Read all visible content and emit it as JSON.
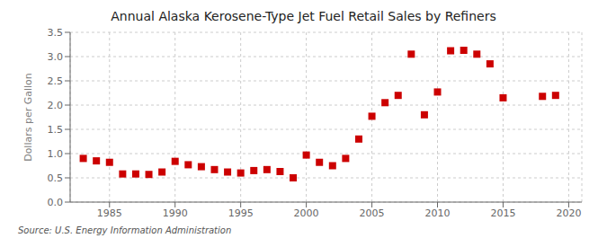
{
  "chart_data": {
    "type": "scatter",
    "title": "Annual Alaska Kerosene-Type Jet Fuel Retail Sales by Refiners",
    "y_label": "Dollars per Gallon",
    "annotations": [
      "Source: U.S. Energy Information Administration"
    ],
    "x": [
      1983,
      1984,
      1985,
      1986,
      1987,
      1988,
      1989,
      1990,
      1991,
      1992,
      1993,
      1994,
      1995,
      1996,
      1997,
      1998,
      1999,
      2000,
      2001,
      2002,
      2003,
      2004,
      2005,
      2006,
      2007,
      2008,
      2009,
      2010,
      2011,
      2012,
      2013,
      2014,
      2015,
      2018,
      2019
    ],
    "values": [
      0.9,
      0.85,
      0.82,
      0.58,
      0.58,
      0.57,
      0.62,
      0.84,
      0.77,
      0.73,
      0.67,
      0.62,
      0.6,
      0.65,
      0.67,
      0.63,
      0.5,
      0.97,
      0.82,
      0.75,
      0.9,
      1.3,
      1.77,
      2.05,
      2.2,
      3.05,
      1.8,
      2.27,
      3.12,
      3.13,
      3.05,
      2.85,
      2.15,
      2.18,
      2.2
    ],
    "color": "#cc0000",
    "marker": "square",
    "xlim": [
      1982,
      2021
    ],
    "xticks": [
      1985,
      1990,
      1995,
      2000,
      2005,
      2010,
      2015,
      2020
    ],
    "ylim": [
      0,
      3.5
    ],
    "yticks": [
      {
        "value": 0,
        "label": "0.0"
      },
      0.5,
      {
        "value": 1,
        "label": "1.0"
      },
      1.5,
      {
        "value": 2,
        "label": "2.0"
      },
      2.5,
      {
        "value": 3,
        "label": "3.0"
      },
      3.5
    ],
    "grid": true
  }
}
